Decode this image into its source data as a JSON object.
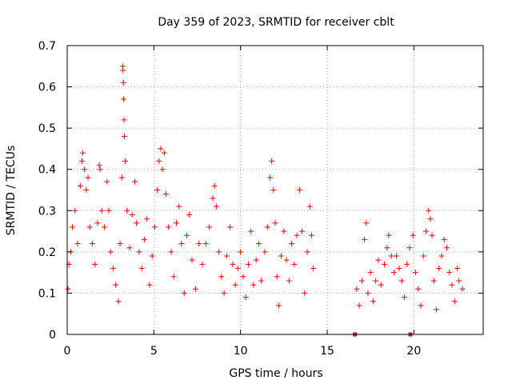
{
  "chart_data": {
    "type": "scatter",
    "title": "Day 359 of 2023, SRMTID for receiver cblt",
    "xlabel": "GPS time / hours",
    "ylabel": "SRMTID / TECUs",
    "xlim": [
      0,
      24
    ],
    "ylim": [
      0,
      0.7
    ],
    "xticks": [
      0,
      5,
      10,
      15,
      20
    ],
    "xtick_labels": [
      "0",
      "5",
      "10",
      "15",
      "20"
    ],
    "yticks": [
      0,
      0.1,
      0.2,
      0.3,
      0.4,
      0.5,
      0.6,
      0.7
    ],
    "ytick_labels": [
      "0",
      "0.1",
      "0.2",
      "0.3",
      "0.4",
      "0.5",
      "0.6",
      "0.7"
    ],
    "grid": true,
    "marker": "plus",
    "color": "#ff0000",
    "series": [
      {
        "name": "SRMTID",
        "segments": [
          {
            "x_start": 0.0,
            "x_end": 14.2
          },
          {
            "x_start": 16.6,
            "x_end": 22.8
          }
        ],
        "summary": {
          "typical_min": 0.08,
          "typical_max": 0.35,
          "typical_center": 0.2
        },
        "points": [
          {
            "x": 0.05,
            "y": 0.11
          },
          {
            "x": 0.1,
            "y": 0.17
          },
          {
            "x": 0.2,
            "y": 0.2
          },
          {
            "x": 0.3,
            "y": 0.26
          },
          {
            "x": 0.45,
            "y": 0.3
          },
          {
            "x": 0.6,
            "y": 0.22
          },
          {
            "x": 0.75,
            "y": 0.36
          },
          {
            "x": 0.85,
            "y": 0.42
          },
          {
            "x": 0.9,
            "y": 0.44
          },
          {
            "x": 1.0,
            "y": 0.4
          },
          {
            "x": 1.1,
            "y": 0.35
          },
          {
            "x": 1.2,
            "y": 0.38
          },
          {
            "x": 1.3,
            "y": 0.26
          },
          {
            "x": 1.45,
            "y": 0.22
          },
          {
            "x": 1.6,
            "y": 0.17
          },
          {
            "x": 1.75,
            "y": 0.27
          },
          {
            "x": 1.85,
            "y": 0.41
          },
          {
            "x": 1.9,
            "y": 0.4
          },
          {
            "x": 2.0,
            "y": 0.3
          },
          {
            "x": 2.15,
            "y": 0.26
          },
          {
            "x": 2.3,
            "y": 0.37
          },
          {
            "x": 2.4,
            "y": 0.3
          },
          {
            "x": 2.5,
            "y": 0.2
          },
          {
            "x": 2.65,
            "y": 0.16
          },
          {
            "x": 2.8,
            "y": 0.12
          },
          {
            "x": 2.95,
            "y": 0.08
          },
          {
            "x": 3.05,
            "y": 0.22
          },
          {
            "x": 3.15,
            "y": 0.38
          },
          {
            "x": 3.2,
            "y": 0.65
          },
          {
            "x": 3.22,
            "y": 0.64
          },
          {
            "x": 3.24,
            "y": 0.61
          },
          {
            "x": 3.26,
            "y": 0.57
          },
          {
            "x": 3.28,
            "y": 0.52
          },
          {
            "x": 3.3,
            "y": 0.48
          },
          {
            "x": 3.35,
            "y": 0.42
          },
          {
            "x": 3.45,
            "y": 0.3
          },
          {
            "x": 3.6,
            "y": 0.21
          },
          {
            "x": 3.75,
            "y": 0.29
          },
          {
            "x": 3.9,
            "y": 0.37
          },
          {
            "x": 4.0,
            "y": 0.27
          },
          {
            "x": 4.15,
            "y": 0.2
          },
          {
            "x": 4.3,
            "y": 0.16
          },
          {
            "x": 4.45,
            "y": 0.23
          },
          {
            "x": 4.6,
            "y": 0.28
          },
          {
            "x": 4.75,
            "y": 0.12
          },
          {
            "x": 4.9,
            "y": 0.19
          },
          {
            "x": 5.05,
            "y": 0.26
          },
          {
            "x": 5.2,
            "y": 0.35
          },
          {
            "x": 5.3,
            "y": 0.42
          },
          {
            "x": 5.4,
            "y": 0.45
          },
          {
            "x": 5.5,
            "y": 0.4
          },
          {
            "x": 5.6,
            "y": 0.44
          },
          {
            "x": 5.7,
            "y": 0.34
          },
          {
            "x": 5.85,
            "y": 0.26
          },
          {
            "x": 6.0,
            "y": 0.2
          },
          {
            "x": 6.15,
            "y": 0.14
          },
          {
            "x": 6.3,
            "y": 0.27
          },
          {
            "x": 6.45,
            "y": 0.31
          },
          {
            "x": 6.6,
            "y": 0.22
          },
          {
            "x": 6.75,
            "y": 0.1
          },
          {
            "x": 6.9,
            "y": 0.24
          },
          {
            "x": 7.05,
            "y": 0.29
          },
          {
            "x": 7.2,
            "y": 0.18
          },
          {
            "x": 7.4,
            "y": 0.11
          },
          {
            "x": 7.6,
            "y": 0.22
          },
          {
            "x": 7.8,
            "y": 0.17
          },
          {
            "x": 8.0,
            "y": 0.22
          },
          {
            "x": 8.2,
            "y": 0.26
          },
          {
            "x": 8.4,
            "y": 0.33
          },
          {
            "x": 8.5,
            "y": 0.36
          },
          {
            "x": 8.6,
            "y": 0.31
          },
          {
            "x": 8.75,
            "y": 0.2
          },
          {
            "x": 8.9,
            "y": 0.14
          },
          {
            "x": 9.05,
            "y": 0.1
          },
          {
            "x": 9.2,
            "y": 0.19
          },
          {
            "x": 9.4,
            "y": 0.26
          },
          {
            "x": 9.55,
            "y": 0.17
          },
          {
            "x": 9.7,
            "y": 0.12
          },
          {
            "x": 9.85,
            "y": 0.16
          },
          {
            "x": 10.0,
            "y": 0.2
          },
          {
            "x": 10.15,
            "y": 0.14
          },
          {
            "x": 10.3,
            "y": 0.09
          },
          {
            "x": 10.45,
            "y": 0.17
          },
          {
            "x": 10.6,
            "y": 0.25
          },
          {
            "x": 10.75,
            "y": 0.12
          },
          {
            "x": 10.9,
            "y": 0.18
          },
          {
            "x": 11.05,
            "y": 0.22
          },
          {
            "x": 11.2,
            "y": 0.13
          },
          {
            "x": 11.4,
            "y": 0.2
          },
          {
            "x": 11.55,
            "y": 0.26
          },
          {
            "x": 11.7,
            "y": 0.38
          },
          {
            "x": 11.8,
            "y": 0.42
          },
          {
            "x": 11.9,
            "y": 0.35
          },
          {
            "x": 12.0,
            "y": 0.27
          },
          {
            "x": 12.1,
            "y": 0.14
          },
          {
            "x": 12.2,
            "y": 0.07
          },
          {
            "x": 12.35,
            "y": 0.19
          },
          {
            "x": 12.5,
            "y": 0.25
          },
          {
            "x": 12.65,
            "y": 0.18
          },
          {
            "x": 12.8,
            "y": 0.13
          },
          {
            "x": 12.95,
            "y": 0.22
          },
          {
            "x": 13.1,
            "y": 0.17
          },
          {
            "x": 13.25,
            "y": 0.24
          },
          {
            "x": 13.4,
            "y": 0.35
          },
          {
            "x": 13.55,
            "y": 0.25
          },
          {
            "x": 13.7,
            "y": 0.1
          },
          {
            "x": 13.85,
            "y": 0.2
          },
          {
            "x": 14.0,
            "y": 0.31
          },
          {
            "x": 14.1,
            "y": 0.24
          },
          {
            "x": 14.2,
            "y": 0.16
          },
          {
            "x": 16.6,
            "y": 0.0
          },
          {
            "x": 16.7,
            "y": 0.11
          },
          {
            "x": 16.85,
            "y": 0.07
          },
          {
            "x": 17.0,
            "y": 0.13
          },
          {
            "x": 17.15,
            "y": 0.23
          },
          {
            "x": 17.25,
            "y": 0.27
          },
          {
            "x": 17.35,
            "y": 0.1
          },
          {
            "x": 17.5,
            "y": 0.15
          },
          {
            "x": 17.65,
            "y": 0.08
          },
          {
            "x": 17.8,
            "y": 0.13
          },
          {
            "x": 17.95,
            "y": 0.18
          },
          {
            "x": 18.1,
            "y": 0.12
          },
          {
            "x": 18.3,
            "y": 0.17
          },
          {
            "x": 18.45,
            "y": 0.21
          },
          {
            "x": 18.55,
            "y": 0.24
          },
          {
            "x": 18.7,
            "y": 0.19
          },
          {
            "x": 18.85,
            "y": 0.15
          },
          {
            "x": 19.0,
            "y": 0.19
          },
          {
            "x": 19.15,
            "y": 0.16
          },
          {
            "x": 19.3,
            "y": 0.13
          },
          {
            "x": 19.45,
            "y": 0.09
          },
          {
            "x": 19.6,
            "y": 0.17
          },
          {
            "x": 19.75,
            "y": 0.21
          },
          {
            "x": 19.8,
            "y": 0.0
          },
          {
            "x": 19.95,
            "y": 0.24
          },
          {
            "x": 20.1,
            "y": 0.15
          },
          {
            "x": 20.25,
            "y": 0.11
          },
          {
            "x": 20.4,
            "y": 0.07
          },
          {
            "x": 20.55,
            "y": 0.19
          },
          {
            "x": 20.7,
            "y": 0.25
          },
          {
            "x": 20.85,
            "y": 0.3
          },
          {
            "x": 20.95,
            "y": 0.28
          },
          {
            "x": 21.05,
            "y": 0.24
          },
          {
            "x": 21.15,
            "y": 0.13
          },
          {
            "x": 21.3,
            "y": 0.06
          },
          {
            "x": 21.45,
            "y": 0.16
          },
          {
            "x": 21.6,
            "y": 0.19
          },
          {
            "x": 21.75,
            "y": 0.23
          },
          {
            "x": 21.9,
            "y": 0.21
          },
          {
            "x": 22.05,
            "y": 0.15
          },
          {
            "x": 22.2,
            "y": 0.12
          },
          {
            "x": 22.35,
            "y": 0.08
          },
          {
            "x": 22.5,
            "y": 0.16
          },
          {
            "x": 22.6,
            "y": 0.13
          },
          {
            "x": 22.8,
            "y": 0.11
          }
        ]
      }
    ]
  }
}
